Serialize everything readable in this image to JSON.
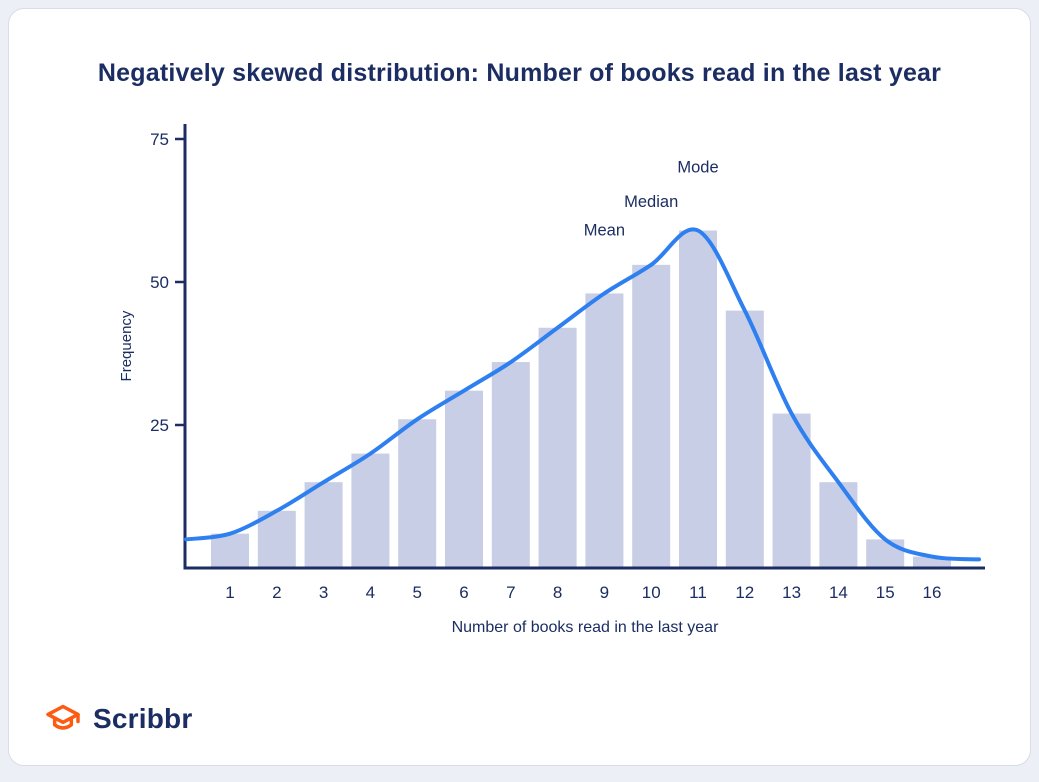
{
  "page": {
    "background_color": "#edeff6",
    "card_background": "#ffffff",
    "card_border_color": "#d8dbe8"
  },
  "chart_data": {
    "type": "bar",
    "title": "Negatively skewed distribution: Number of books read in the last year",
    "xlabel": "Number of books read in the last year",
    "ylabel": "Frequency",
    "categories": [
      "1",
      "2",
      "3",
      "4",
      "5",
      "6",
      "7",
      "8",
      "9",
      "10",
      "11",
      "12",
      "13",
      "14",
      "15",
      "16"
    ],
    "values": [
      6,
      10,
      15,
      20,
      26,
      31,
      36,
      42,
      48,
      53,
      59,
      45,
      27,
      15,
      5,
      2
    ],
    "yticks": [
      25,
      50,
      75
    ],
    "ylim": [
      0,
      78
    ],
    "grid": false,
    "legend": false,
    "curve": {
      "type": "smooth-density-overlay",
      "start_value": 5,
      "end_value": 1.5
    },
    "annotations": [
      {
        "label": "Mean",
        "category_index": 8
      },
      {
        "label": "Median",
        "category_index": 9
      },
      {
        "label": "Mode",
        "category_index": 10
      }
    ],
    "colors": {
      "bar": "#c7cee5",
      "curve": "#2e7ff0",
      "axis": "#1b2d63",
      "text": "#1b2d63"
    }
  },
  "logo": {
    "brand": "Scribbr",
    "icon": "graduation-cap-icon",
    "color": "#fd5a12"
  }
}
